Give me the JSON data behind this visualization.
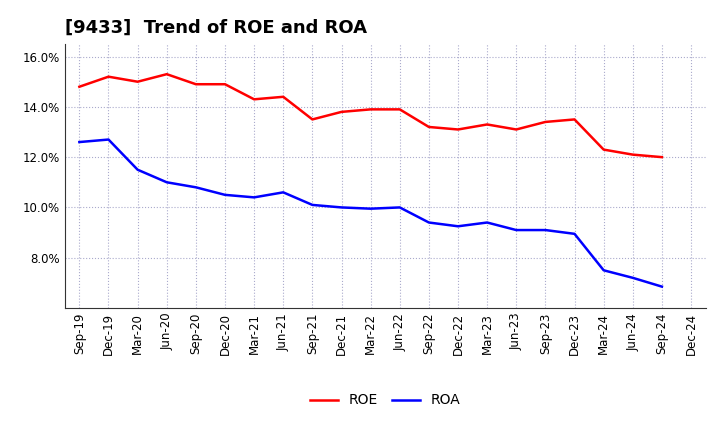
{
  "title": "[9433]  Trend of ROE and ROA",
  "x_labels": [
    "Sep-19",
    "Dec-19",
    "Mar-20",
    "Jun-20",
    "Sep-20",
    "Dec-20",
    "Mar-21",
    "Jun-21",
    "Sep-21",
    "Dec-21",
    "Mar-22",
    "Jun-22",
    "Sep-22",
    "Dec-22",
    "Mar-23",
    "Jun-23",
    "Sep-23",
    "Dec-23",
    "Mar-24",
    "Jun-24",
    "Sep-24",
    "Dec-24"
  ],
  "roe": [
    14.8,
    15.2,
    15.0,
    15.3,
    14.9,
    14.9,
    14.3,
    14.4,
    13.5,
    13.8,
    13.9,
    13.9,
    13.2,
    13.1,
    13.3,
    13.1,
    13.4,
    13.5,
    12.3,
    12.1,
    12.0,
    null
  ],
  "roa": [
    12.6,
    12.7,
    11.5,
    11.0,
    10.8,
    10.5,
    10.4,
    10.6,
    10.1,
    10.0,
    9.95,
    10.0,
    9.4,
    9.25,
    9.4,
    9.1,
    9.1,
    8.95,
    7.5,
    7.2,
    6.85,
    null
  ],
  "ylim": [
    6.0,
    16.5
  ],
  "yticks": [
    8.0,
    10.0,
    12.0,
    14.0,
    16.0
  ],
  "roe_color": "#FF0000",
  "roa_color": "#0000FF",
  "background_color": "#FFFFFF",
  "plot_bg_color": "#FFFFFF",
  "grid_color": "#AAAACC",
  "line_width": 1.8,
  "title_fontsize": 13,
  "tick_fontsize": 8.5,
  "legend_fontsize": 10
}
